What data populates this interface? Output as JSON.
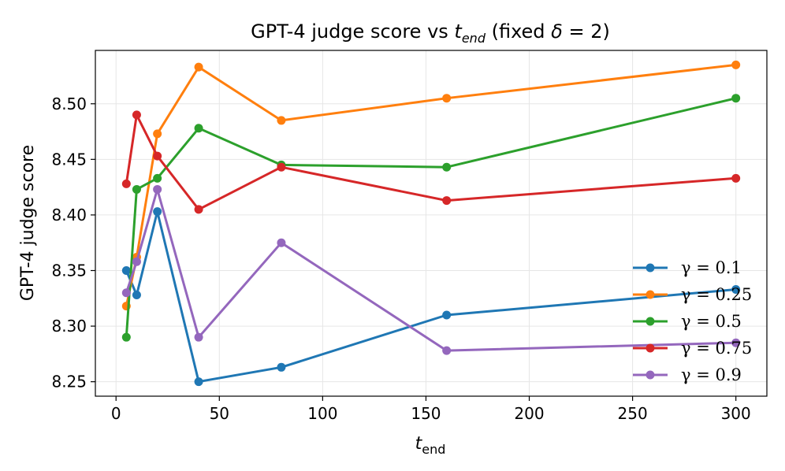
{
  "chart_data": {
    "type": "line",
    "title": {
      "prefix": "GPT-4 judge score vs ",
      "var": "t",
      "sub": "end",
      "suffix_open": " (fixed ",
      "delta": "δ",
      "eq": " = 2)"
    },
    "xlabel": {
      "var": "t",
      "sub": "end"
    },
    "ylabel": "GPT-4 judge score",
    "x": [
      5,
      10,
      20,
      40,
      80,
      160,
      300
    ],
    "xlim": [
      -10,
      315
    ],
    "ylim": [
      8.237,
      8.548
    ],
    "xticks": [
      "0",
      "50",
      "100",
      "150",
      "200",
      "250",
      "300"
    ],
    "yticks": [
      "8.25",
      "8.30",
      "8.35",
      "8.40",
      "8.45",
      "8.50"
    ],
    "grid": true,
    "legend_position": "right",
    "series": [
      {
        "name": "γ = 0.1",
        "values": [
          8.35,
          8.328,
          8.403,
          8.25,
          8.263,
          8.31,
          8.333
        ],
        "color": "#1f77b4"
      },
      {
        "name": "γ = 0.25",
        "values": [
          8.318,
          8.362,
          8.473,
          8.533,
          8.485,
          8.505,
          8.535
        ],
        "color": "#ff7f0e"
      },
      {
        "name": "γ = 0.5",
        "values": [
          8.29,
          8.423,
          8.433,
          8.478,
          8.445,
          8.443,
          8.505
        ],
        "color": "#2ca02c"
      },
      {
        "name": "γ = 0.75",
        "values": [
          8.428,
          8.49,
          8.453,
          8.405,
          8.443,
          8.413,
          8.433
        ],
        "color": "#d62728"
      },
      {
        "name": "γ = 0.9",
        "values": [
          8.33,
          8.358,
          8.423,
          8.29,
          8.375,
          8.278,
          8.285
        ],
        "color": "#9467bd"
      }
    ]
  }
}
